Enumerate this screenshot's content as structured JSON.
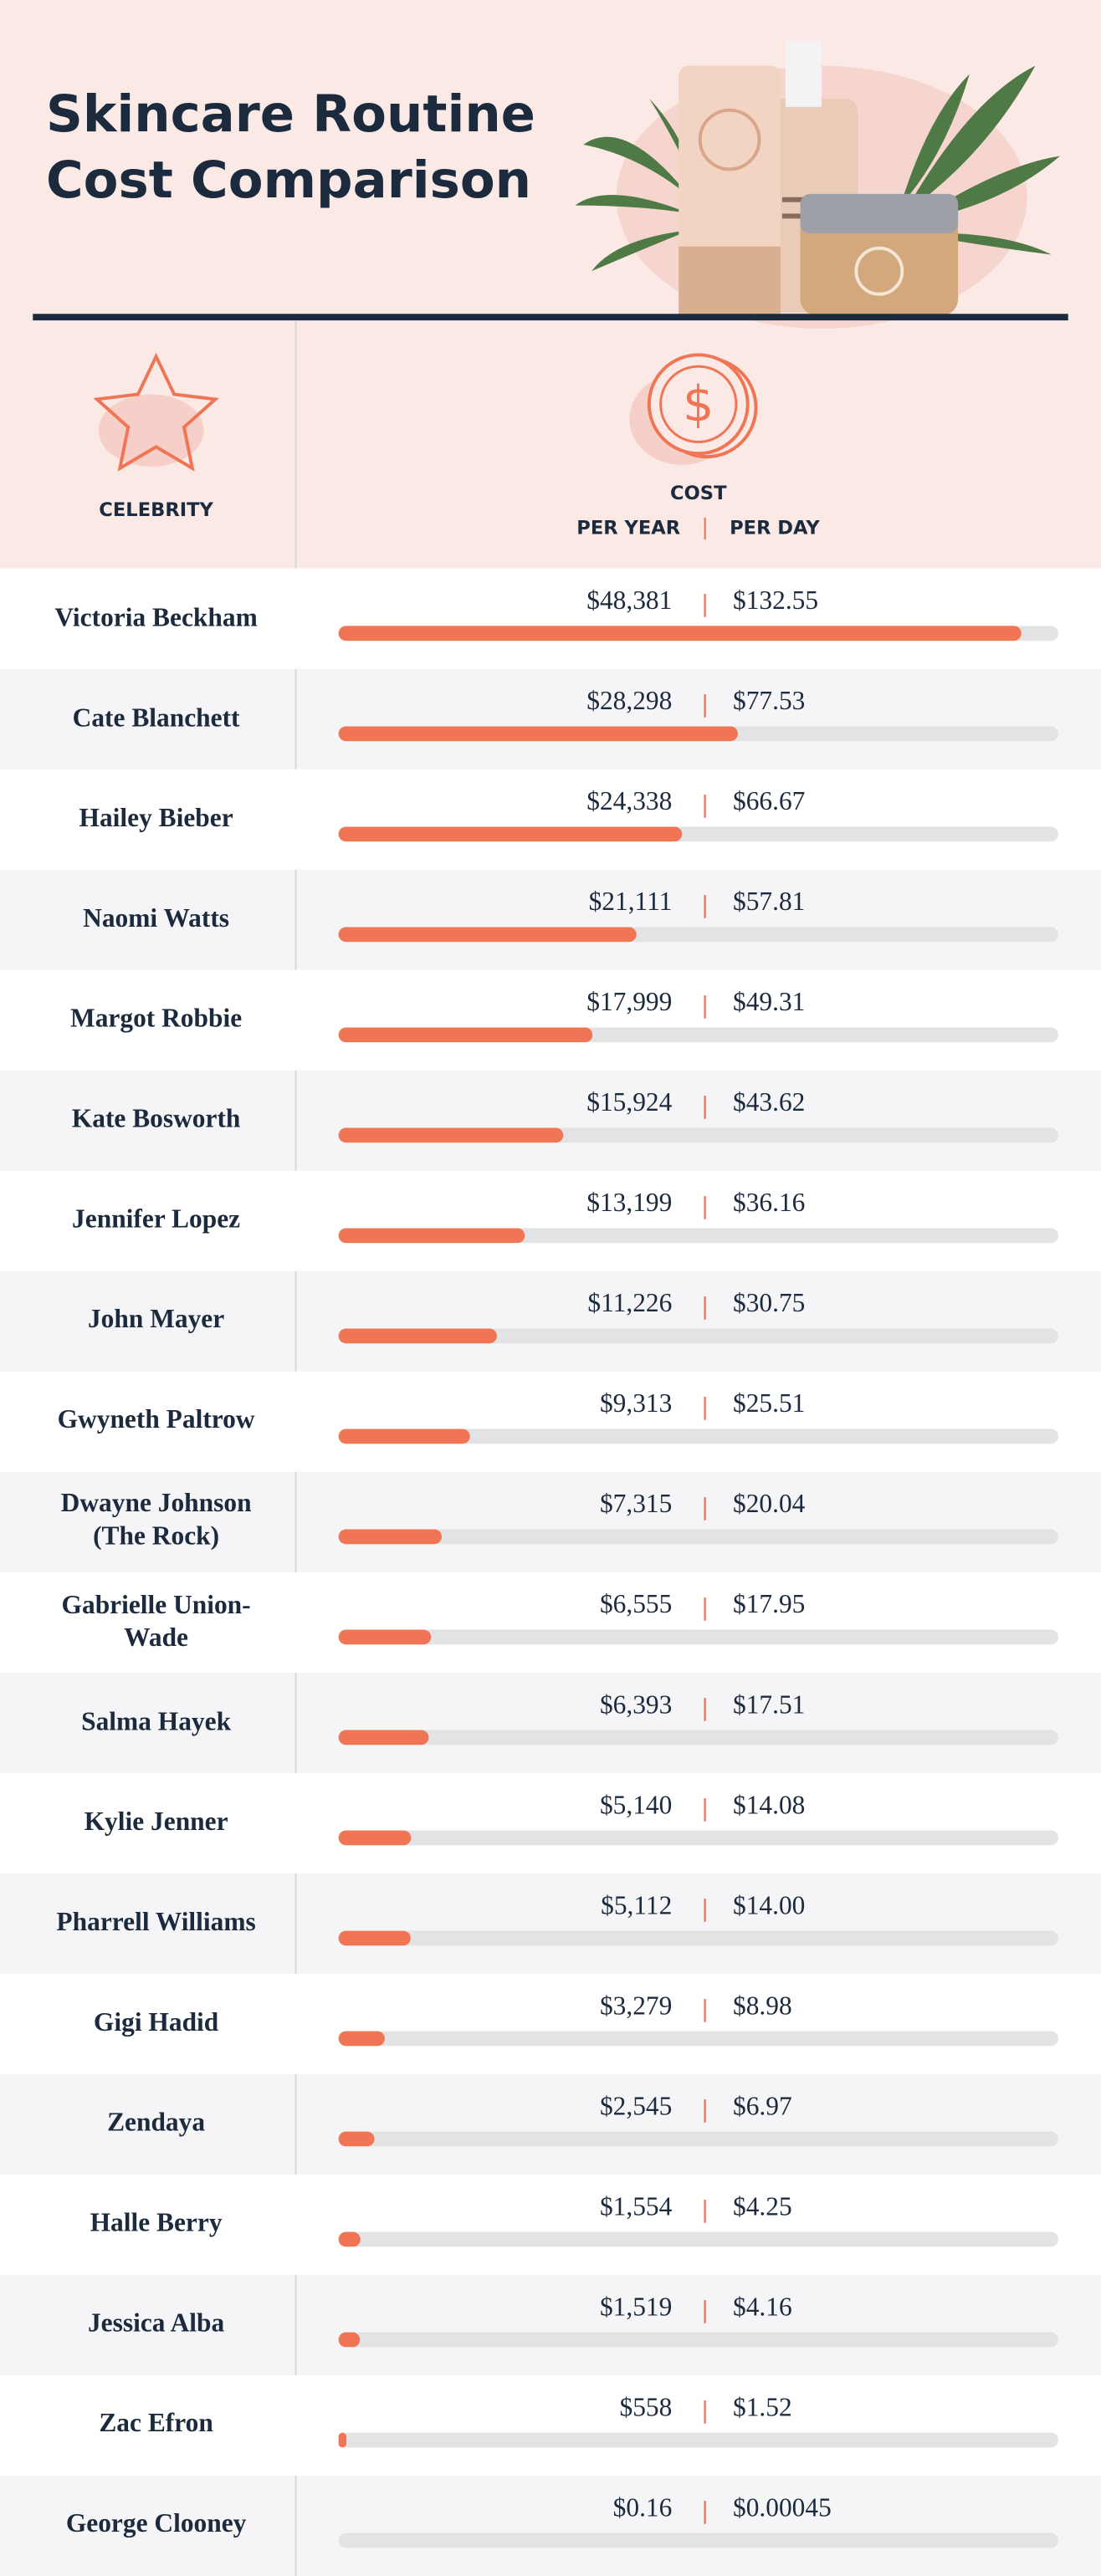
{
  "chart_data": {
    "type": "bar",
    "title": "Skincare Routine Cost Comparison",
    "category_label": "CELEBRITY",
    "value_label": "COST",
    "categories": [
      "Victoria Beckham",
      "Cate Blanchett",
      "Hailey Bieber",
      "Naomi Watts",
      "Margot Robbie",
      "Kate Bosworth",
      "Jennifer Lopez",
      "John Mayer",
      "Gwyneth Paltrow",
      "Dwayne Johnson (The Rock)",
      "Gabrielle Union-Wade",
      "Salma Hayek",
      "Kylie Jenner",
      "Pharrell Williams",
      "Gigi Hadid",
      "Zendaya",
      "Halle Berry",
      "Jessica Alba",
      "Zac Efron",
      "George Clooney"
    ],
    "series": [
      {
        "name": "PER YEAR",
        "color": "#f07555",
        "values": [
          48381,
          28298,
          24338,
          21111,
          17999,
          15924,
          13199,
          11226,
          9313,
          7315,
          6555,
          6393,
          5140,
          5112,
          3279,
          2545,
          1554,
          1519,
          558,
          0.16
        ],
        "value_labels": [
          "$48,381",
          "$28,298",
          "$24,338",
          "$21,111",
          "$17,999",
          "$15,924",
          "$13,199",
          "$11,226",
          "$9,313",
          "$7,315",
          "$6,555",
          "$6,393",
          "$5,140",
          "$5,112",
          "$3,279",
          "$2,545",
          "$1,554",
          "$1,519",
          "$558",
          "$0.16"
        ]
      },
      {
        "name": "PER DAY",
        "values": [
          132.55,
          77.53,
          66.67,
          57.81,
          49.31,
          43.62,
          36.16,
          30.75,
          25.51,
          20.04,
          17.95,
          17.51,
          14.08,
          14.0,
          8.98,
          6.97,
          4.25,
          4.16,
          1.52,
          0.00045
        ],
        "value_labels": [
          "$132.55",
          "$77.53",
          "$66.67",
          "$57.81",
          "$49.31",
          "$43.62",
          "$36.16",
          "$30.75",
          "$25.51",
          "$20.04",
          "$17.95",
          "$17.51",
          "$14.08",
          "$14.00",
          "$8.98",
          "$6.97",
          "$4.25",
          "$4.16",
          "$1.52",
          "$0.00045"
        ]
      }
    ],
    "xlim": [
      0,
      51000
    ]
  }
}
